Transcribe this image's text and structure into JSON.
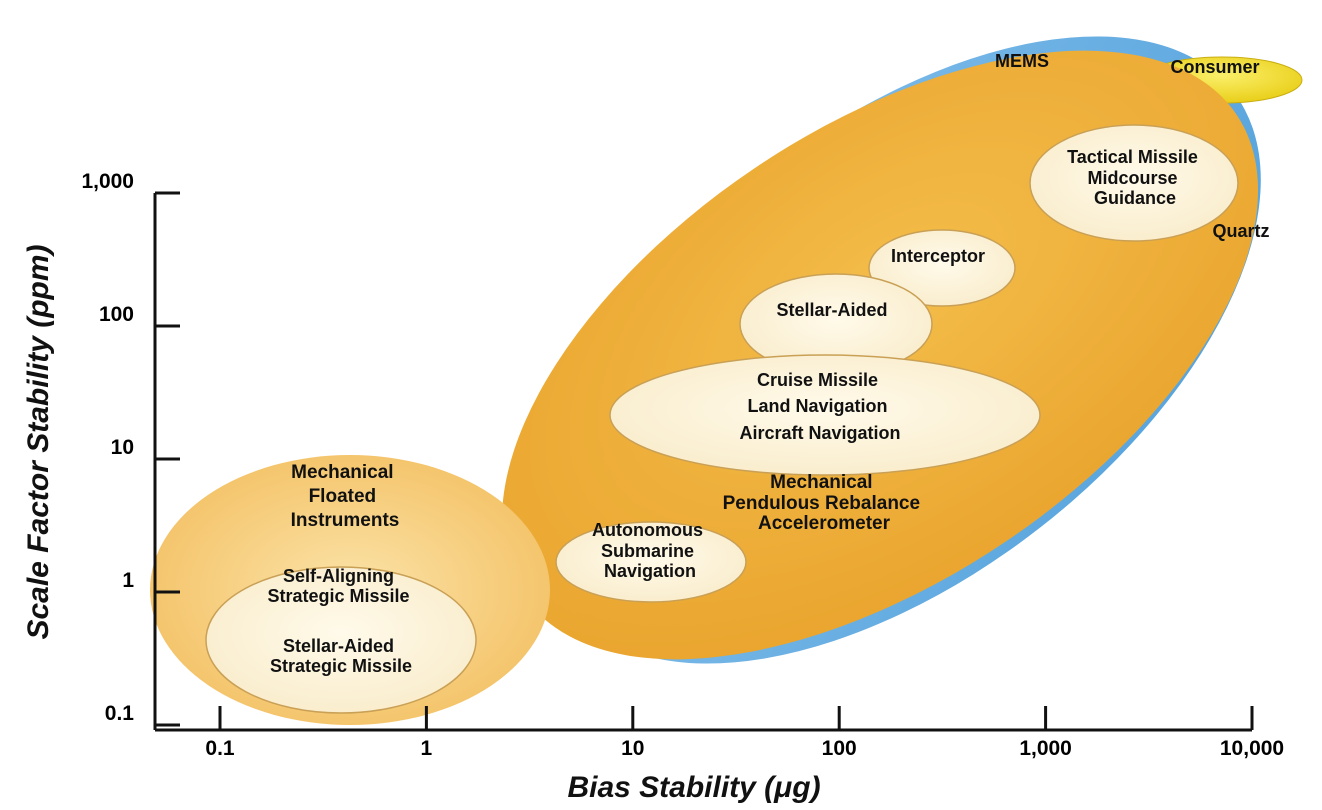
{
  "chart_data": {
    "type": "bubble-region",
    "title": "",
    "xlabel": "Bias Stability (μg)",
    "ylabel": "Scale Factor Stability (ppm)",
    "x_scale": "log",
    "y_scale": "log",
    "xlim": [
      0.05,
      10000
    ],
    "ylim": [
      0.1,
      1000
    ],
    "x_ticks": [
      0.1,
      1,
      10,
      100,
      1000,
      10000
    ],
    "x_tick_labels": [
      "0.1",
      "1",
      "10",
      "100",
      "1,000",
      "10,000"
    ],
    "y_ticks": [
      0.1,
      1,
      10,
      100,
      1000
    ],
    "y_tick_labels": [
      "0.1",
      "1",
      "10",
      "100",
      "1,000"
    ],
    "grid": false,
    "technology_regions": [
      {
        "name": "MEMS",
        "color": "#6bb0e3"
      },
      {
        "name": "Consumer",
        "color": "#f2dc2a"
      },
      {
        "name": "Quartz",
        "color": "#efaf36"
      },
      {
        "name": "Mechanical Floated Instruments",
        "lines": [
          "Mechanical",
          "Floated",
          "Instruments"
        ],
        "color": "#f6c873"
      },
      {
        "name": "Mechanical Pendulous Rebalance Accelerometer",
        "lines": [
          "Mechanical",
          "Pendulous Rebalance",
          "Accelerometer"
        ],
        "color": "#efaf36"
      }
    ],
    "application_regions": [
      {
        "name": "Tactical Missile Midcourse Guidance",
        "lines": [
          "Tactical Missile",
          "Midcourse",
          "Guidance"
        ],
        "x_range": [
          1500,
          8000
        ],
        "y_range": [
          250,
          1300
        ]
      },
      {
        "name": "Interceptor",
        "lines": [
          "Interceptor"
        ],
        "x_range": [
          200,
          800
        ],
        "y_range": [
          100,
          350
        ]
      },
      {
        "name": "Stellar-Aided",
        "lines": [
          "Stellar-Aided"
        ],
        "x_range": [
          50,
          250
        ],
        "y_range": [
          28,
          120
        ]
      },
      {
        "name": "Cruise Missile / Land Navigation / Aircraft Navigation",
        "lines": [
          "Cruise Missile",
          "Land Navigation",
          "Aircraft Navigation"
        ],
        "x_range": [
          10,
          1000
        ],
        "y_range": [
          7,
          40
        ]
      },
      {
        "name": "Autonomous Submarine Navigation",
        "lines": [
          "Autonomous",
          "Submarine",
          "Navigation"
        ],
        "x_range": [
          4,
          30
        ],
        "y_range": [
          0.9,
          4
        ]
      },
      {
        "name": "Self-Aligning Strategic Missile / Stellar-Aided Strategic Missile",
        "lines": [
          "Self-Aligning",
          "Strategic Missile",
          "",
          "Stellar-Aided",
          "Strategic Missile"
        ],
        "x_range": [
          0.06,
          3
        ],
        "y_range": [
          0.14,
          1.5
        ]
      }
    ]
  }
}
